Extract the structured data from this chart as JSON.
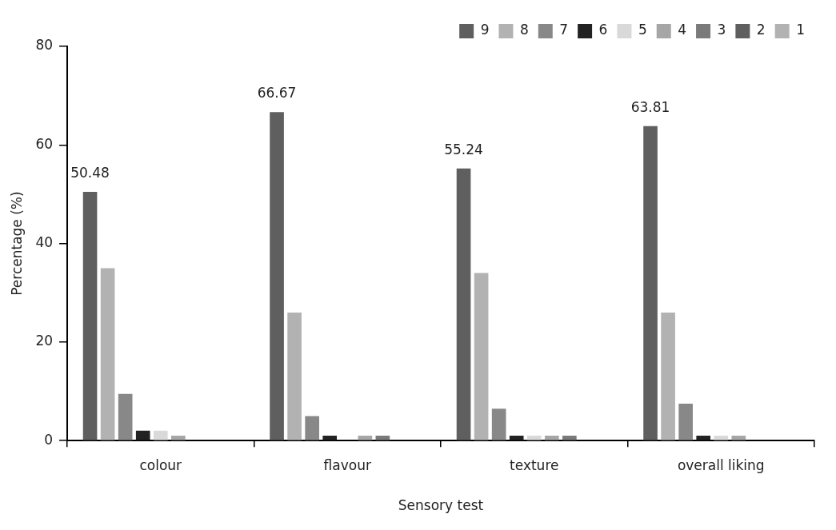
{
  "chart_data": {
    "type": "bar",
    "xlabel": "Sensory test",
    "ylabel": "Percentage (%)",
    "categories": [
      "colour",
      "flavour",
      "texture",
      "overall liking"
    ],
    "series": [
      {
        "name": "9",
        "color": "#5f5f5f",
        "values": [
          50.48,
          66.67,
          55.24,
          63.81
        ],
        "value_labels": [
          "50.48",
          "66.67",
          "55.24",
          "63.81"
        ]
      },
      {
        "name": "8",
        "color": "#b2b2b2",
        "values": [
          35,
          26,
          34,
          26
        ]
      },
      {
        "name": "7",
        "color": "#888888",
        "values": [
          9.5,
          5,
          6.5,
          7.5
        ]
      },
      {
        "name": "6",
        "color": "#222222",
        "values": [
          2,
          1,
          1,
          1
        ]
      },
      {
        "name": "5",
        "color": "#d9d9d9",
        "values": [
          2,
          0,
          1,
          1
        ]
      },
      {
        "name": "4",
        "color": "#a6a6a6",
        "values": [
          1,
          1,
          1,
          1
        ]
      },
      {
        "name": "3",
        "color": "#7a7a7a",
        "values": [
          0,
          1,
          1,
          0
        ]
      },
      {
        "name": "2",
        "color": "#5f5f5f",
        "values": [
          0,
          0,
          0,
          0
        ]
      },
      {
        "name": "1",
        "color": "#b2b2b2",
        "values": [
          0,
          0,
          0,
          0
        ]
      }
    ],
    "ylim": [
      0,
      80
    ],
    "yticks": [
      0,
      20,
      40,
      60,
      80
    ],
    "grid": false,
    "legend": "top right"
  }
}
